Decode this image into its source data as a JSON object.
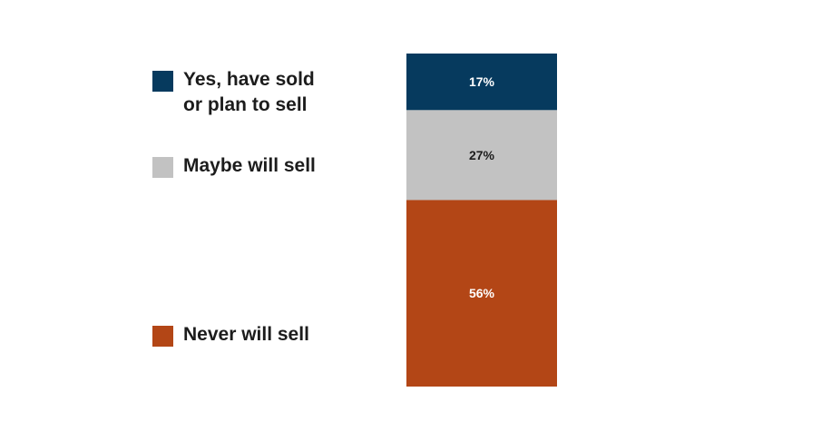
{
  "chart_data": {
    "type": "bar",
    "stacked": true,
    "orientation": "vertical",
    "categories": [
      ""
    ],
    "series": [
      {
        "name": "Yes, have sold\nor plan to sell",
        "values": [
          17
        ],
        "label": "17%",
        "color": "#063a5e",
        "label_color": "#ffffff"
      },
      {
        "name": "Maybe will sell",
        "values": [
          27
        ],
        "label": "27%",
        "color": "#c2c2c2",
        "label_color": "#1c1c1c"
      },
      {
        "name": "Never will sell",
        "values": [
          56
        ],
        "label": "56%",
        "color": "#b34616",
        "label_color": "#ffffff"
      }
    ],
    "ylim": [
      0,
      100
    ],
    "legend_position": "left",
    "grid": false
  }
}
